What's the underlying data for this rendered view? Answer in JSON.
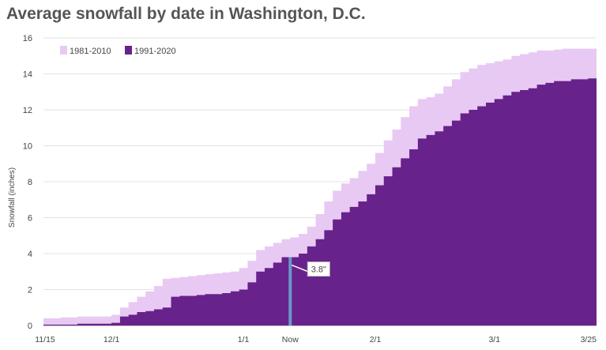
{
  "chart_data": {
    "type": "area",
    "title": "Average snowfall by date in Washington, D.C.",
    "xlabel": "",
    "ylabel": "Snowfall (inches)",
    "ylim": [
      0,
      16
    ],
    "yticks": [
      0,
      2,
      4,
      6,
      8,
      10,
      12,
      14,
      16
    ],
    "xlim": [
      0,
      130
    ],
    "xticks": [
      {
        "x": 0,
        "label": "11/15"
      },
      {
        "x": 16,
        "label": "12/1"
      },
      {
        "x": 47,
        "label": "1/1"
      },
      {
        "x": 58,
        "label": "Now"
      },
      {
        "x": 78,
        "label": "2/1"
      },
      {
        "x": 106,
        "label": "3/1"
      },
      {
        "x": 130,
        "label": "3/25"
      }
    ],
    "grid": true,
    "legend": "top-left",
    "series": [
      {
        "name": "1981-2010",
        "color": "#e8c9f3",
        "x": [
          0,
          4,
          8,
          12,
          16,
          18,
          20,
          22,
          24,
          26,
          28,
          30,
          32,
          34,
          36,
          38,
          40,
          42,
          44,
          46,
          48,
          50,
          52,
          54,
          56,
          58,
          60,
          62,
          64,
          66,
          68,
          70,
          72,
          74,
          76,
          78,
          80,
          82,
          84,
          86,
          88,
          90,
          92,
          94,
          96,
          98,
          100,
          102,
          104,
          106,
          108,
          110,
          112,
          114,
          116,
          118,
          120,
          122,
          124,
          126,
          128,
          130
        ],
        "values": [
          0.4,
          0.45,
          0.5,
          0.5,
          0.6,
          1.0,
          1.3,
          1.6,
          1.9,
          2.2,
          2.6,
          2.65,
          2.7,
          2.75,
          2.8,
          2.85,
          2.9,
          2.95,
          3.0,
          3.2,
          3.6,
          4.2,
          4.4,
          4.6,
          4.8,
          4.9,
          5.1,
          5.5,
          6.2,
          6.9,
          7.5,
          7.9,
          8.2,
          8.6,
          9.0,
          9.6,
          10.3,
          10.9,
          11.6,
          12.2,
          12.6,
          12.7,
          12.9,
          13.3,
          13.7,
          14.1,
          14.3,
          14.5,
          14.6,
          14.7,
          14.8,
          15.0,
          15.1,
          15.2,
          15.3,
          15.3,
          15.35,
          15.4,
          15.4,
          15.4,
          15.4,
          15.4
        ]
      },
      {
        "name": "1991-2020",
        "color": "#68228b",
        "x": [
          0,
          4,
          8,
          12,
          16,
          18,
          20,
          22,
          24,
          26,
          28,
          30,
          32,
          34,
          36,
          38,
          40,
          42,
          44,
          46,
          48,
          50,
          52,
          54,
          56,
          58,
          60,
          62,
          64,
          66,
          68,
          70,
          72,
          74,
          76,
          78,
          80,
          82,
          84,
          86,
          88,
          90,
          92,
          94,
          96,
          98,
          100,
          102,
          104,
          106,
          108,
          110,
          112,
          114,
          116,
          118,
          120,
          122,
          124,
          126,
          128,
          130
        ],
        "values": [
          0.05,
          0.05,
          0.1,
          0.1,
          0.15,
          0.5,
          0.6,
          0.75,
          0.8,
          0.9,
          1.0,
          1.6,
          1.65,
          1.65,
          1.7,
          1.75,
          1.75,
          1.8,
          1.9,
          2.0,
          2.4,
          3.0,
          3.2,
          3.5,
          3.8,
          3.8,
          4.0,
          4.4,
          4.8,
          5.3,
          5.9,
          6.3,
          6.6,
          6.9,
          7.3,
          7.8,
          8.3,
          8.8,
          9.3,
          9.8,
          10.4,
          10.6,
          10.8,
          11.1,
          11.4,
          11.8,
          12.0,
          12.2,
          12.4,
          12.6,
          12.8,
          13.0,
          13.1,
          13.2,
          13.4,
          13.5,
          13.6,
          13.6,
          13.7,
          13.7,
          13.75,
          13.8
        ]
      }
    ],
    "annotations": [
      {
        "x": 58,
        "label": "3.8\"",
        "marker_color": "#6b98c8"
      }
    ]
  }
}
